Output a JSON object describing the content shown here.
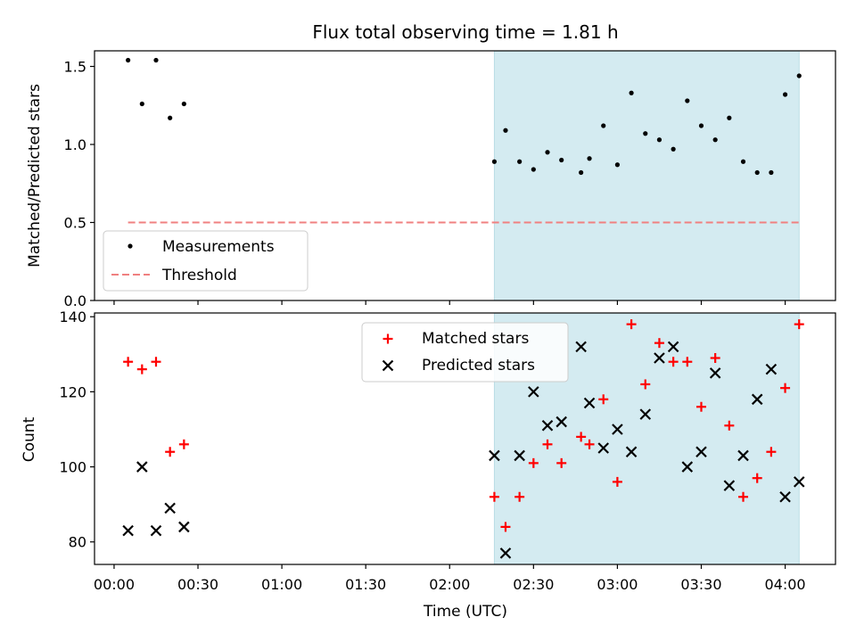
{
  "chart_data": {
    "type": "scatter",
    "title": "Flux total observing time = 1.81 h",
    "xlabel": "Time (UTC)",
    "x_ticks": [
      "00:00",
      "00:30",
      "01:00",
      "01:30",
      "02:00",
      "02:30",
      "03:00",
      "03:30",
      "04:00"
    ],
    "x_tick_minutes": [
      0,
      30,
      60,
      90,
      120,
      150,
      180,
      210,
      240
    ],
    "xlim_minutes": [
      -7,
      258
    ],
    "highlight_span_minutes": [
      136,
      245
    ],
    "colors": {
      "highlight": "#d4ebf1",
      "highlight_edge": "#b9dde6",
      "threshold": "#f08080",
      "matched": "#ff0000",
      "predicted": "#000000",
      "measurement": "#000000"
    },
    "panels": [
      {
        "ylabel": "Matched/Predicted stars",
        "ylim": [
          0,
          1.6
        ],
        "y_ticks": [
          "0.0",
          "0.5",
          "1.0",
          "1.5"
        ],
        "y_tick_values": [
          0,
          0.5,
          1.0,
          1.5
        ],
        "threshold": {
          "y": 0.5,
          "x_range_minutes": [
            5,
            245
          ]
        },
        "legend": [
          "Measurements",
          "Threshold"
        ],
        "series": [
          {
            "name": "Measurements",
            "marker": "dot",
            "x_minutes": [
              5,
              10,
              15,
              20,
              25,
              136,
              140,
              145,
              150,
              155,
              160,
              167,
              170,
              175,
              180,
              185,
              190,
              195,
              200,
              205,
              210,
              215,
              220,
              225,
              230,
              235,
              240,
              245
            ],
            "y": [
              1.54,
              1.26,
              1.54,
              1.17,
              1.26,
              0.89,
              1.09,
              0.89,
              0.84,
              0.95,
              0.9,
              0.82,
              0.91,
              1.12,
              0.87,
              1.33,
              1.07,
              1.03,
              0.97,
              1.28,
              1.12,
              1.03,
              1.17,
              0.89,
              0.82,
              0.82,
              1.32,
              1.44
            ]
          }
        ]
      },
      {
        "ylabel": "Count",
        "ylim": [
          74,
          141
        ],
        "y_ticks": [
          "80",
          "100",
          "120",
          "140"
        ],
        "y_tick_values": [
          80,
          100,
          120,
          140
        ],
        "legend": [
          "Matched stars",
          "Predicted stars"
        ],
        "series": [
          {
            "name": "Matched stars",
            "marker": "plus",
            "x_minutes": [
              5,
              10,
              15,
              20,
              25,
              136,
              140,
              145,
              150,
              155,
              160,
              167,
              170,
              175,
              180,
              185,
              190,
              195,
              200,
              205,
              210,
              215,
              220,
              225,
              230,
              235,
              240,
              245
            ],
            "y": [
              128,
              126,
              128,
              104,
              106,
              92,
              84,
              92,
              101,
              106,
              101,
              108,
              106,
              118,
              96,
              138,
              122,
              133,
              128,
              128,
              116,
              129,
              111,
              92,
              97,
              104,
              121,
              138
            ]
          },
          {
            "name": "Predicted stars",
            "marker": "x",
            "x_minutes": [
              5,
              10,
              15,
              20,
              25,
              136,
              140,
              145,
              150,
              155,
              160,
              167,
              170,
              175,
              180,
              185,
              190,
              195,
              200,
              205,
              210,
              215,
              220,
              225,
              230,
              235,
              240,
              245
            ],
            "y": [
              83,
              100,
              83,
              89,
              84,
              103,
              77,
              103,
              120,
              111,
              112,
              132,
              117,
              105,
              110,
              104,
              114,
              129,
              132,
              100,
              104,
              125,
              95,
              103,
              118,
              126,
              92,
              96
            ]
          }
        ]
      }
    ]
  }
}
